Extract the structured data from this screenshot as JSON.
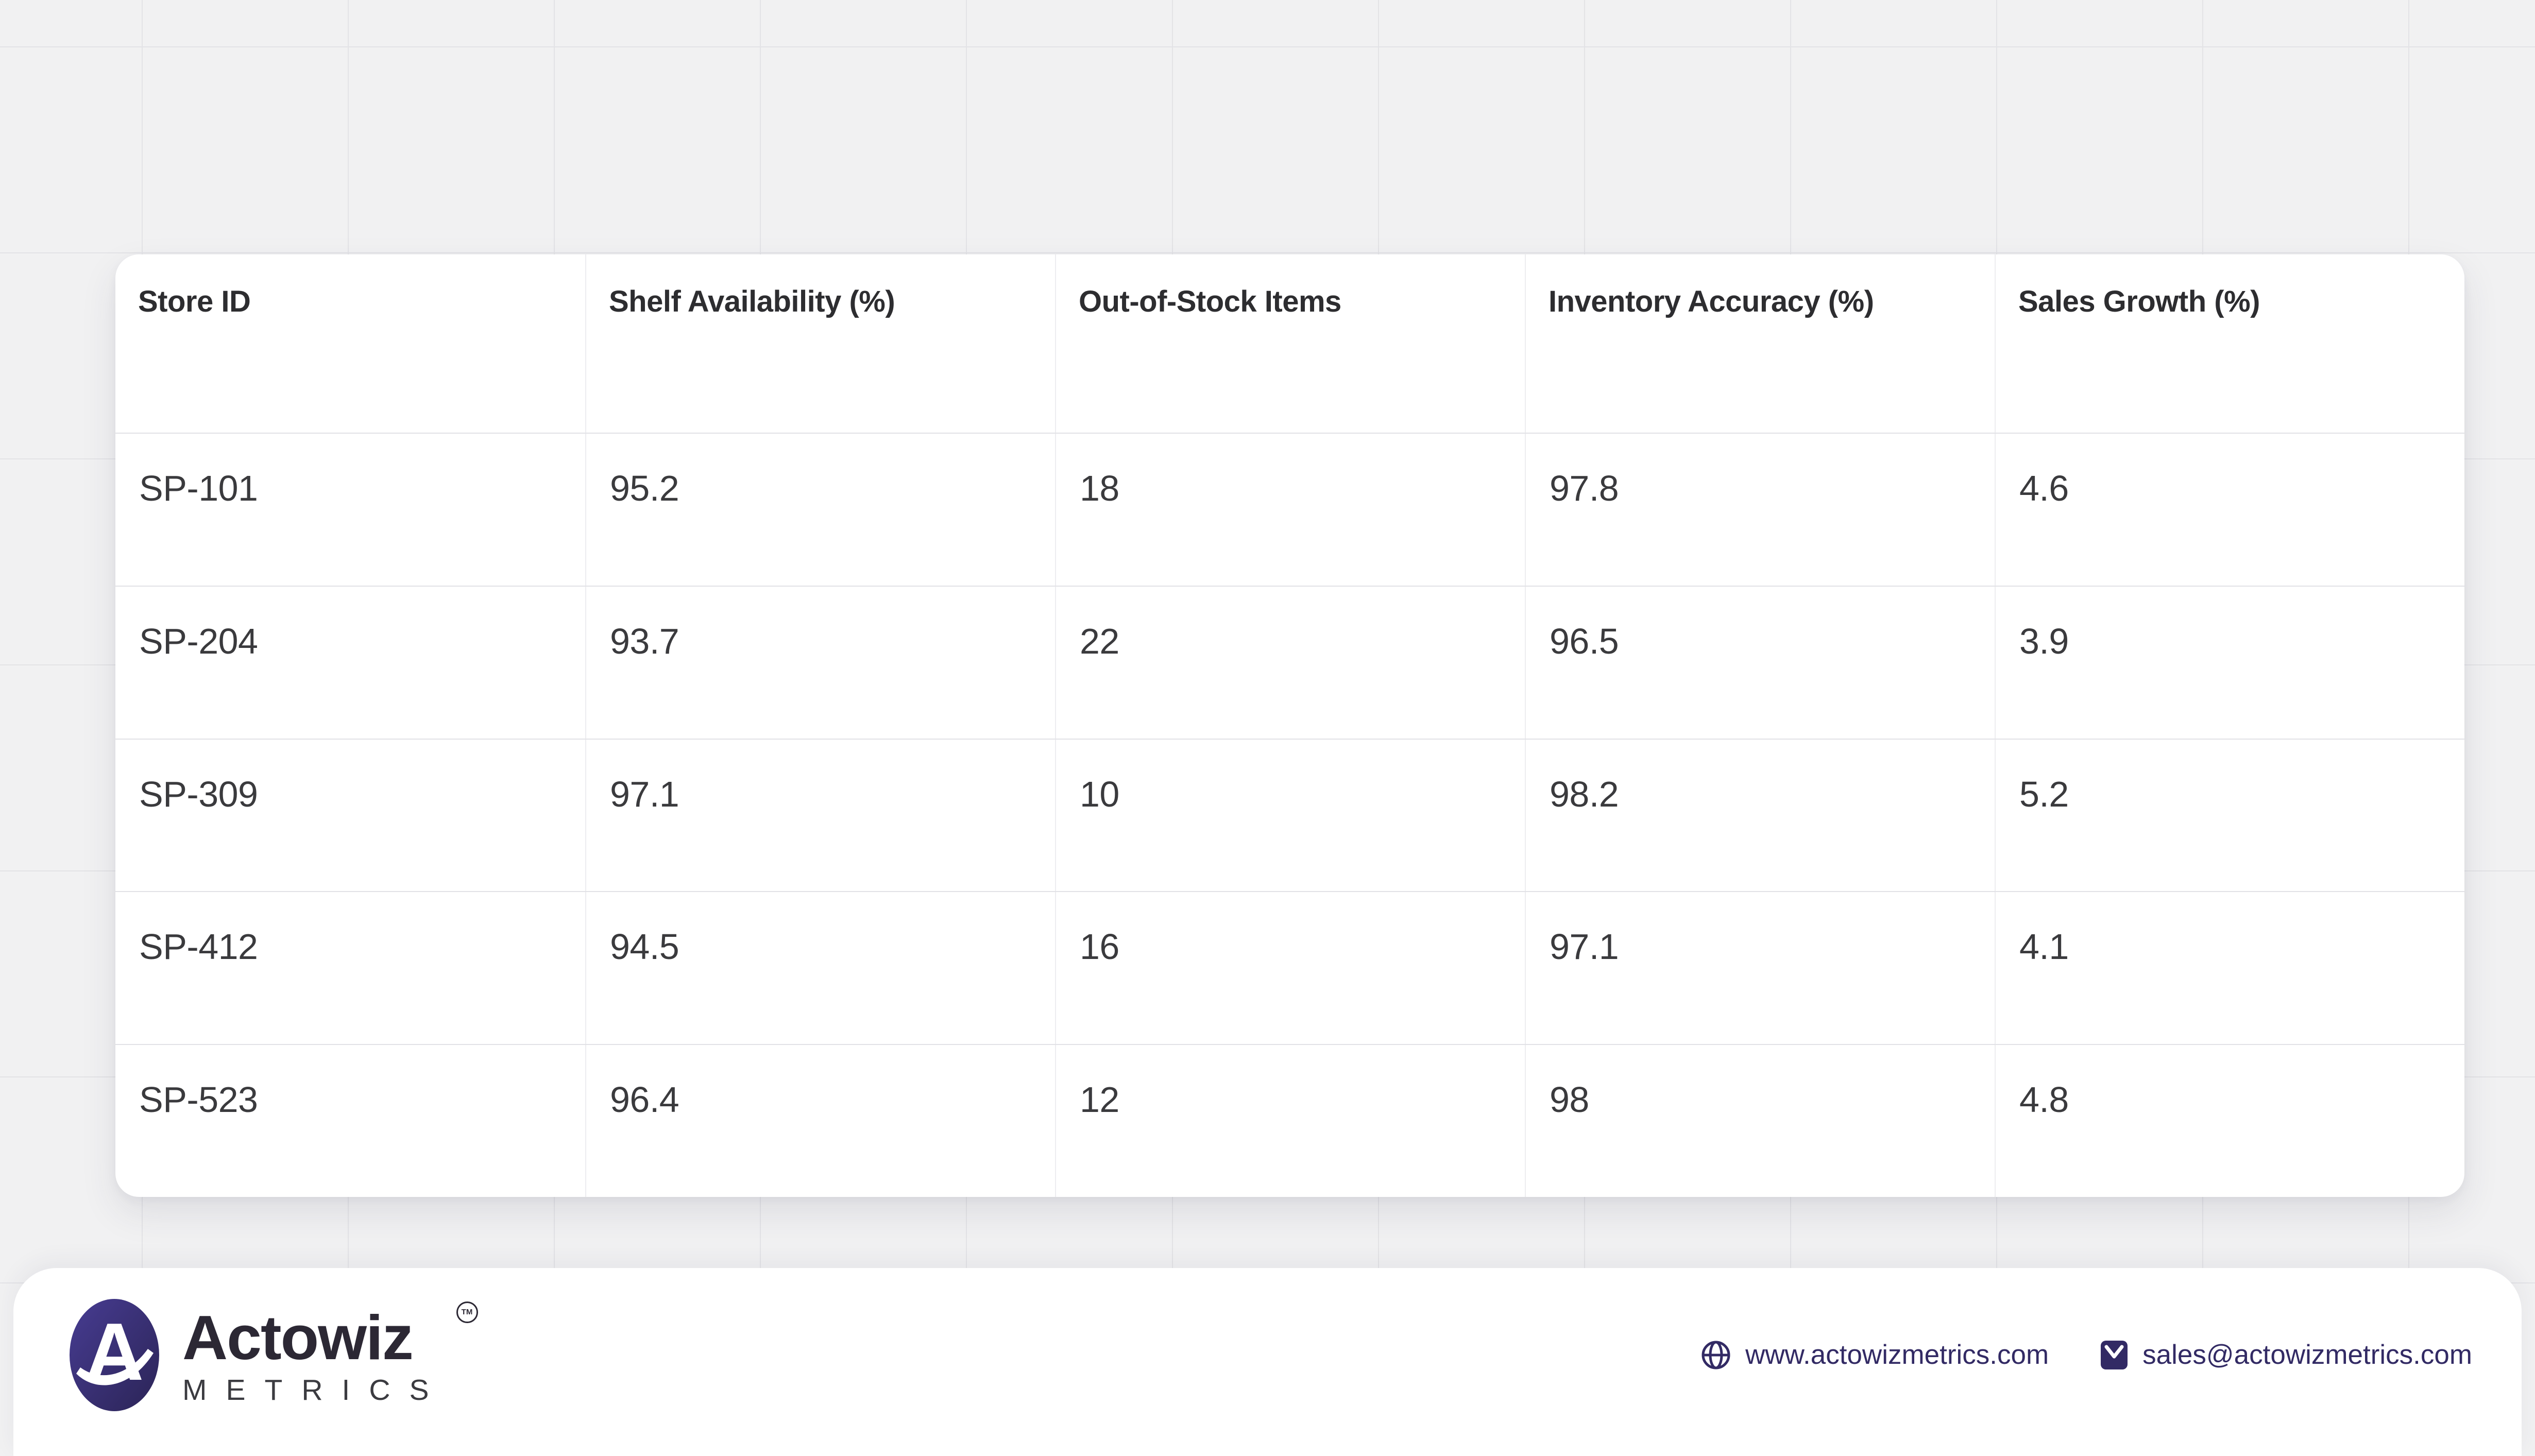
{
  "chart_data": {
    "type": "table",
    "title": "",
    "columns": [
      "Store ID",
      "Shelf Availability (%)",
      "Out-of-Stock Items",
      "Inventory Accuracy (%)",
      "Sales Growth (%)"
    ],
    "rows": [
      [
        "SP-101",
        "95.2",
        "18",
        "97.8",
        "4.6"
      ],
      [
        "SP-204",
        "93.7",
        "22",
        "96.5",
        "3.9"
      ],
      [
        "SP-309",
        "97.1",
        "10",
        "98.2",
        "5.2"
      ],
      [
        "SP-412",
        "94.5",
        "16",
        "97.1",
        "4.1"
      ],
      [
        "SP-523",
        "96.4",
        "12",
        "98",
        "4.8"
      ]
    ]
  },
  "footer": {
    "brand": {
      "name": "Actowiz",
      "sub": "METRICS",
      "tm": "TM"
    },
    "website": {
      "label": "www.actowizmetrics.com"
    },
    "email": {
      "label": "sales@actowizmetrics.com"
    }
  },
  "colors": {
    "background": "#f1f1f2",
    "grid_line": "#e3e3e6",
    "card": "#ffffff",
    "header_text": "#2d2d30",
    "cell_text": "#3a3a3d",
    "accent_indigo": "#322a64",
    "logo_gradient_start": "#473c92",
    "logo_gradient_end": "#2b2456"
  }
}
